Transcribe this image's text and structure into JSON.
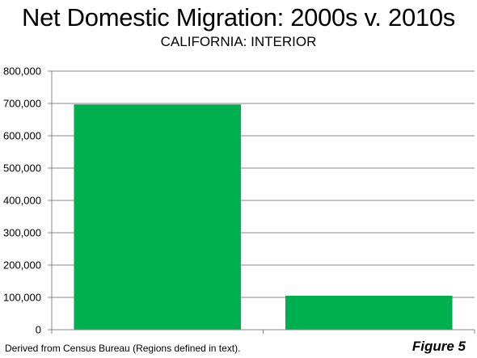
{
  "chart_data": {
    "type": "bar",
    "title": "Net Domestic Migration: 2000s v. 2010s",
    "subtitle": "CALIFORNIA: INTERIOR",
    "categories": [
      "",
      ""
    ],
    "values": [
      697000,
      105000
    ],
    "ylim": [
      0,
      800000
    ],
    "yticks": [
      0,
      100000,
      200000,
      300000,
      400000,
      500000,
      600000,
      700000,
      800000
    ],
    "ytick_labels": [
      "0",
      "100,000",
      "200,000",
      "300,000",
      "400,000",
      "500,000",
      "600,000",
      "700,000",
      "800,000"
    ],
    "grid": true,
    "bar_color": "#00b050",
    "xlabel": "",
    "ylabel": ""
  },
  "footer": {
    "source": "Derived from Census Bureau (Regions defined in text).",
    "figure": "Figure 5"
  }
}
